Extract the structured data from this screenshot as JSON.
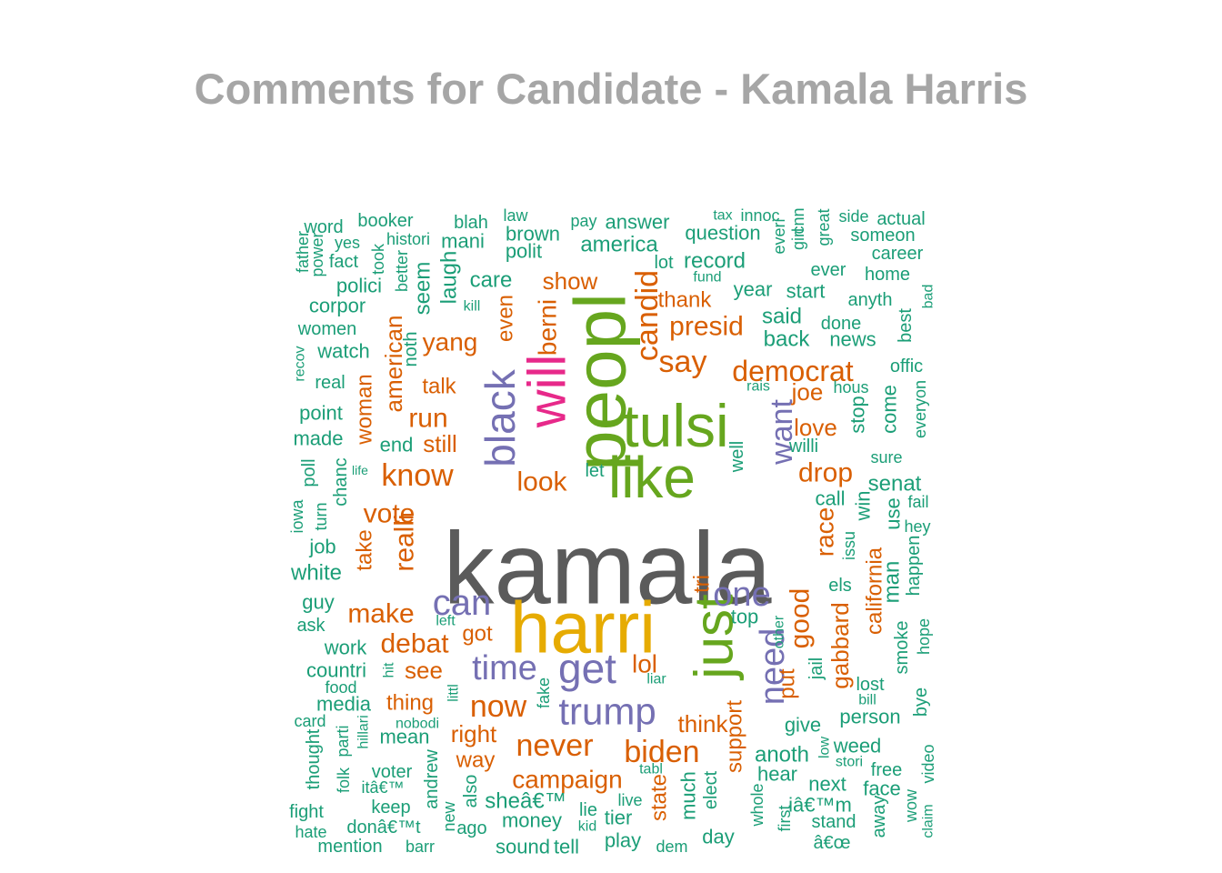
{
  "title": "Comments for Candidate - Kamala Harris",
  "palette": {
    "gray": "#5b5b5b",
    "gold": "#e6ab02",
    "green": "#66a61e",
    "magenta": "#e7298a",
    "purple": "#7570b3",
    "orange": "#d95f02",
    "teal": "#1b9e77"
  },
  "chart_data": {
    "type": "wordcloud",
    "title": "Comments for Candidate - Kamala Harris",
    "words": [
      {
        "text": "kamala",
        "color": "gray"
      },
      {
        "text": "harri",
        "color": "gold"
      },
      {
        "text": "tulsi",
        "color": "green"
      },
      {
        "text": "like",
        "color": "green"
      },
      {
        "text": "peopl",
        "color": "green"
      },
      {
        "text": "will",
        "color": "magenta"
      },
      {
        "text": "just",
        "color": "green"
      },
      {
        "text": "black",
        "color": "purple"
      },
      {
        "text": "get",
        "color": "purple"
      },
      {
        "text": "trump",
        "color": "purple"
      },
      {
        "text": "can",
        "color": "purple"
      },
      {
        "text": "time",
        "color": "purple"
      },
      {
        "text": "one",
        "color": "purple"
      },
      {
        "text": "need",
        "color": "purple"
      },
      {
        "text": "want",
        "color": "purple"
      },
      {
        "text": "democrat",
        "color": "orange"
      },
      {
        "text": "candid",
        "color": "orange"
      },
      {
        "text": "berni",
        "color": "orange"
      },
      {
        "text": "say",
        "color": "orange"
      },
      {
        "text": "presid",
        "color": "orange"
      },
      {
        "text": "know",
        "color": "orange"
      },
      {
        "text": "look",
        "color": "orange"
      },
      {
        "text": "drop",
        "color": "orange"
      },
      {
        "text": "love",
        "color": "orange"
      },
      {
        "text": "joe",
        "color": "orange"
      },
      {
        "text": "run",
        "color": "orange"
      },
      {
        "text": "yang",
        "color": "orange"
      },
      {
        "text": "talk",
        "color": "orange"
      },
      {
        "text": "still",
        "color": "orange"
      },
      {
        "text": "even",
        "color": "orange"
      },
      {
        "text": "show",
        "color": "orange"
      },
      {
        "text": "thank",
        "color": "orange"
      },
      {
        "text": "american",
        "color": "orange"
      },
      {
        "text": "woman",
        "color": "orange"
      },
      {
        "text": "vote",
        "color": "orange"
      },
      {
        "text": "realli",
        "color": "orange"
      },
      {
        "text": "make",
        "color": "orange"
      },
      {
        "text": "take",
        "color": "orange"
      },
      {
        "text": "debat",
        "color": "orange"
      },
      {
        "text": "see",
        "color": "orange"
      },
      {
        "text": "got",
        "color": "orange"
      },
      {
        "text": "lol",
        "color": "orange"
      },
      {
        "text": "now",
        "color": "orange"
      },
      {
        "text": "never",
        "color": "orange"
      },
      {
        "text": "biden",
        "color": "orange"
      },
      {
        "text": "campaign",
        "color": "orange"
      },
      {
        "text": "right",
        "color": "orange"
      },
      {
        "text": "way",
        "color": "orange"
      },
      {
        "text": "thing",
        "color": "orange"
      },
      {
        "text": "think",
        "color": "orange"
      },
      {
        "text": "support",
        "color": "orange"
      },
      {
        "text": "tri",
        "color": "orange"
      },
      {
        "text": "good",
        "color": "orange"
      },
      {
        "text": "put",
        "color": "orange"
      },
      {
        "text": "race",
        "color": "orange"
      },
      {
        "text": "gabbard",
        "color": "orange"
      },
      {
        "text": "california",
        "color": "orange"
      },
      {
        "text": "state",
        "color": "orange"
      },
      {
        "text": "word",
        "color": "teal"
      },
      {
        "text": "booker",
        "color": "teal"
      },
      {
        "text": "blah",
        "color": "teal"
      },
      {
        "text": "law",
        "color": "teal"
      },
      {
        "text": "pay",
        "color": "teal"
      },
      {
        "text": "answer",
        "color": "teal"
      },
      {
        "text": "tax",
        "color": "teal"
      },
      {
        "text": "innoc",
        "color": "teal"
      },
      {
        "text": "side",
        "color": "teal"
      },
      {
        "text": "actual",
        "color": "teal"
      },
      {
        "text": "yes",
        "color": "teal"
      },
      {
        "text": "histori",
        "color": "teal"
      },
      {
        "text": "mani",
        "color": "teal"
      },
      {
        "text": "brown",
        "color": "teal"
      },
      {
        "text": "question",
        "color": "teal"
      },
      {
        "text": "someon",
        "color": "teal"
      },
      {
        "text": "father",
        "color": "teal"
      },
      {
        "text": "power",
        "color": "teal"
      },
      {
        "text": "fact",
        "color": "teal"
      },
      {
        "text": "took",
        "color": "teal"
      },
      {
        "text": "polit",
        "color": "teal"
      },
      {
        "text": "america",
        "color": "teal"
      },
      {
        "text": "career",
        "color": "teal"
      },
      {
        "text": "polici",
        "color": "teal"
      },
      {
        "text": "better",
        "color": "teal"
      },
      {
        "text": "seem",
        "color": "teal"
      },
      {
        "text": "laugh",
        "color": "teal"
      },
      {
        "text": "care",
        "color": "teal"
      },
      {
        "text": "lot",
        "color": "teal"
      },
      {
        "text": "record",
        "color": "teal"
      },
      {
        "text": "everi",
        "color": "teal"
      },
      {
        "text": "girl",
        "color": "teal"
      },
      {
        "text": "cnn",
        "color": "teal"
      },
      {
        "text": "great",
        "color": "teal"
      },
      {
        "text": "ever",
        "color": "teal"
      },
      {
        "text": "home",
        "color": "teal"
      },
      {
        "text": "corpor",
        "color": "teal"
      },
      {
        "text": "kill",
        "color": "teal"
      },
      {
        "text": "fund",
        "color": "teal"
      },
      {
        "text": "year",
        "color": "teal"
      },
      {
        "text": "start",
        "color": "teal"
      },
      {
        "text": "anyth",
        "color": "teal"
      },
      {
        "text": "women",
        "color": "teal"
      },
      {
        "text": "said",
        "color": "teal"
      },
      {
        "text": "done",
        "color": "teal"
      },
      {
        "text": "bad",
        "color": "teal"
      },
      {
        "text": "watch",
        "color": "teal"
      },
      {
        "text": "noth",
        "color": "teal"
      },
      {
        "text": "back",
        "color": "teal"
      },
      {
        "text": "news",
        "color": "teal"
      },
      {
        "text": "best",
        "color": "teal"
      },
      {
        "text": "recov",
        "color": "teal"
      },
      {
        "text": "offic",
        "color": "teal"
      },
      {
        "text": "real",
        "color": "teal"
      },
      {
        "text": "rais",
        "color": "teal"
      },
      {
        "text": "hous",
        "color": "teal"
      },
      {
        "text": "everyon",
        "color": "teal"
      },
      {
        "text": "point",
        "color": "teal"
      },
      {
        "text": "stop",
        "color": "teal"
      },
      {
        "text": "come",
        "color": "teal"
      },
      {
        "text": "made",
        "color": "teal"
      },
      {
        "text": "end",
        "color": "teal"
      },
      {
        "text": "willi",
        "color": "teal"
      },
      {
        "text": "sure",
        "color": "teal"
      },
      {
        "text": "poll",
        "color": "teal"
      },
      {
        "text": "life",
        "color": "teal"
      },
      {
        "text": "let",
        "color": "teal"
      },
      {
        "text": "well",
        "color": "teal"
      },
      {
        "text": "senat",
        "color": "teal"
      },
      {
        "text": "chanc",
        "color": "teal"
      },
      {
        "text": "call",
        "color": "teal"
      },
      {
        "text": "fail",
        "color": "teal"
      },
      {
        "text": "iowa",
        "color": "teal"
      },
      {
        "text": "turn",
        "color": "teal"
      },
      {
        "text": "win",
        "color": "teal"
      },
      {
        "text": "use",
        "color": "teal"
      },
      {
        "text": "hey",
        "color": "teal"
      },
      {
        "text": "job",
        "color": "teal"
      },
      {
        "text": "issu",
        "color": "teal"
      },
      {
        "text": "happen",
        "color": "teal"
      },
      {
        "text": "white",
        "color": "teal"
      },
      {
        "text": "els",
        "color": "teal"
      },
      {
        "text": "man",
        "color": "teal"
      },
      {
        "text": "guy",
        "color": "teal"
      },
      {
        "text": "ask",
        "color": "teal"
      },
      {
        "text": "left",
        "color": "teal"
      },
      {
        "text": "top",
        "color": "teal"
      },
      {
        "text": "smoke",
        "color": "teal"
      },
      {
        "text": "hope",
        "color": "teal"
      },
      {
        "text": "work",
        "color": "teal"
      },
      {
        "text": "countri",
        "color": "teal"
      },
      {
        "text": "hit",
        "color": "teal"
      },
      {
        "text": "other",
        "color": "teal"
      },
      {
        "text": "jail",
        "color": "teal"
      },
      {
        "text": "food",
        "color": "teal"
      },
      {
        "text": "littl",
        "color": "teal"
      },
      {
        "text": "liar",
        "color": "teal"
      },
      {
        "text": "lost",
        "color": "teal"
      },
      {
        "text": "media",
        "color": "teal"
      },
      {
        "text": "fake",
        "color": "teal"
      },
      {
        "text": "bill",
        "color": "teal"
      },
      {
        "text": "person",
        "color": "teal"
      },
      {
        "text": "card",
        "color": "teal"
      },
      {
        "text": "nobodi",
        "color": "teal"
      },
      {
        "text": "give",
        "color": "teal"
      },
      {
        "text": "bye",
        "color": "teal"
      },
      {
        "text": "thought",
        "color": "teal"
      },
      {
        "text": "parti",
        "color": "teal"
      },
      {
        "text": "hillari",
        "color": "teal"
      },
      {
        "text": "mean",
        "color": "teal"
      },
      {
        "text": "weed",
        "color": "teal"
      },
      {
        "text": "low",
        "color": "teal"
      },
      {
        "text": "anoth",
        "color": "teal"
      },
      {
        "text": "stori",
        "color": "teal"
      },
      {
        "text": "free",
        "color": "teal"
      },
      {
        "text": "video",
        "color": "teal"
      },
      {
        "text": "voter",
        "color": "teal"
      },
      {
        "text": "andrew",
        "color": "teal"
      },
      {
        "text": "tabl",
        "color": "teal"
      },
      {
        "text": "hear",
        "color": "teal"
      },
      {
        "text": "next",
        "color": "teal"
      },
      {
        "text": "itâ€™",
        "color": "teal"
      },
      {
        "text": "folk",
        "color": "teal"
      },
      {
        "text": "sheâ€™",
        "color": "teal"
      },
      {
        "text": "elect",
        "color": "teal"
      },
      {
        "text": "much",
        "color": "teal"
      },
      {
        "text": "face",
        "color": "teal"
      },
      {
        "text": "keep",
        "color": "teal"
      },
      {
        "text": "also",
        "color": "teal"
      },
      {
        "text": "live",
        "color": "teal"
      },
      {
        "text": "iâ€™m",
        "color": "teal"
      },
      {
        "text": "fight",
        "color": "teal"
      },
      {
        "text": "lie",
        "color": "teal"
      },
      {
        "text": "tier",
        "color": "teal"
      },
      {
        "text": "whole",
        "color": "teal"
      },
      {
        "text": "first",
        "color": "teal"
      },
      {
        "text": "wow",
        "color": "teal"
      },
      {
        "text": "money",
        "color": "teal"
      },
      {
        "text": "stand",
        "color": "teal"
      },
      {
        "text": "away",
        "color": "teal"
      },
      {
        "text": "hate",
        "color": "teal"
      },
      {
        "text": "donâ€™t",
        "color": "teal"
      },
      {
        "text": "new",
        "color": "teal"
      },
      {
        "text": "ago",
        "color": "teal"
      },
      {
        "text": "kid",
        "color": "teal"
      },
      {
        "text": "claim",
        "color": "teal"
      },
      {
        "text": "play",
        "color": "teal"
      },
      {
        "text": "day",
        "color": "teal"
      },
      {
        "text": "â€œ",
        "color": "teal"
      },
      {
        "text": "mention",
        "color": "teal"
      },
      {
        "text": "barr",
        "color": "teal"
      },
      {
        "text": "sound",
        "color": "teal"
      },
      {
        "text": "tell",
        "color": "teal"
      },
      {
        "text": "dem",
        "color": "teal"
      }
    ]
  }
}
